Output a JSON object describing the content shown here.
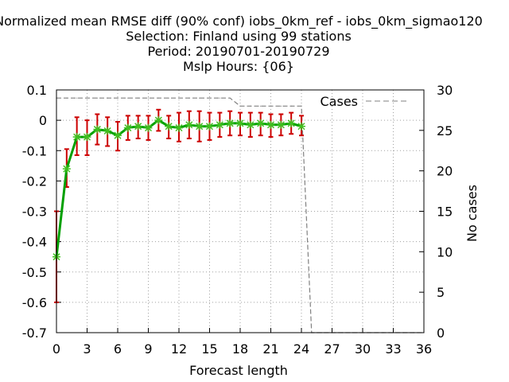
{
  "chart_data": {
    "type": "line",
    "title_lines": [
      "Normalized mean RMSE diff (90% conf) iobs_0km_ref - iobs_0km_sigmao120",
      "Selection: Finland using    99 stations",
      "Period: 20190701-20190729",
      "Mslp   Hours: {06}"
    ],
    "xlabel": "Forecast length",
    "ylabel_right": "No cases",
    "xlim": [
      0,
      36
    ],
    "ylim": [
      -0.7,
      0.1
    ],
    "y2lim": [
      0,
      30
    ],
    "xticks": [
      "0",
      "3",
      "6",
      "9",
      "12",
      "15",
      "18",
      "21",
      "24",
      "27",
      "30",
      "33",
      "36"
    ],
    "yticks": [
      "0.1",
      "0",
      "-0.1",
      "-0.2",
      "-0.3",
      "-0.4",
      "-0.5",
      "-0.6",
      "-0.7"
    ],
    "y2ticks": [
      "30",
      "25",
      "20",
      "15",
      "10",
      "5",
      "0"
    ],
    "grid": true,
    "legend": "top-right",
    "series": [
      {
        "name": "",
        "axis": "left",
        "color": "#00a000",
        "marker_color": "#40c020",
        "errorbar_color": "#cc0000",
        "x": [
          0,
          1,
          2,
          3,
          4,
          5,
          6,
          7,
          8,
          9,
          10,
          11,
          12,
          13,
          14,
          15,
          16,
          17,
          18,
          19,
          20,
          21,
          22,
          23,
          24
        ],
        "values": [
          -0.45,
          -0.16,
          -0.055,
          -0.055,
          -0.03,
          -0.035,
          -0.05,
          -0.025,
          -0.02,
          -0.025,
          0.0,
          -0.02,
          -0.025,
          -0.015,
          -0.02,
          -0.02,
          -0.015,
          -0.01,
          -0.01,
          -0.015,
          -0.01,
          -0.015,
          -0.015,
          -0.01,
          -0.02
        ],
        "err_low": [
          -0.6,
          -0.22,
          -0.115,
          -0.115,
          -0.08,
          -0.085,
          -0.1,
          -0.065,
          -0.06,
          -0.065,
          -0.035,
          -0.06,
          -0.07,
          -0.06,
          -0.07,
          -0.065,
          -0.055,
          -0.05,
          -0.05,
          -0.055,
          -0.05,
          -0.055,
          -0.05,
          -0.045,
          -0.05
        ],
        "err_high": [
          -0.3,
          -0.095,
          0.01,
          0.0,
          0.02,
          0.01,
          -0.005,
          0.015,
          0.015,
          0.015,
          0.035,
          0.015,
          0.025,
          0.03,
          0.03,
          0.025,
          0.025,
          0.03,
          0.025,
          0.025,
          0.025,
          0.02,
          0.02,
          0.025,
          0.015
        ]
      },
      {
        "name": "Cases",
        "axis": "right",
        "color": "#808080",
        "dashed": true,
        "x": [
          0,
          1,
          2,
          3,
          4,
          5,
          6,
          7,
          8,
          9,
          10,
          11,
          12,
          13,
          14,
          15,
          16,
          17,
          18,
          19,
          20,
          21,
          22,
          23,
          24,
          25,
          26,
          27,
          28,
          29,
          30,
          31,
          32,
          33,
          34,
          35,
          36
        ],
        "values": [
          29,
          29,
          29,
          29,
          29,
          29,
          29,
          29,
          29,
          29,
          29,
          29,
          29,
          29,
          29,
          29,
          29,
          29,
          28,
          28,
          28,
          28,
          28,
          28,
          28,
          0,
          0,
          0,
          0,
          0,
          0,
          0,
          0,
          0,
          0,
          0,
          0
        ]
      }
    ]
  }
}
